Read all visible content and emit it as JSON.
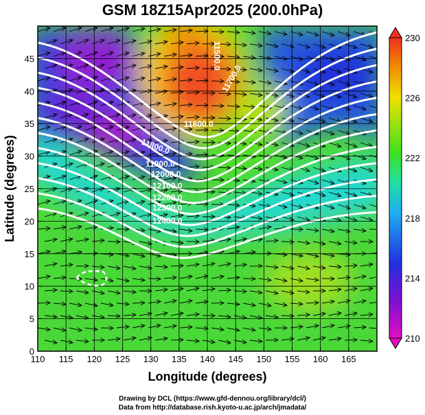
{
  "title": "GSM 18Z15Apr2025 (200.0hPa)",
  "xaxis": {
    "label": "Longitude (degrees)",
    "ticks": [
      "110",
      "115",
      "120",
      "125",
      "130",
      "135",
      "140",
      "145",
      "150",
      "155",
      "160",
      "165"
    ],
    "range": [
      110,
      170
    ]
  },
  "yaxis": {
    "label": "Latitude  (degrees)",
    "ticks": [
      "0",
      "5",
      "10",
      "15",
      "20",
      "25",
      "30",
      "35",
      "40",
      "45"
    ],
    "range": [
      0,
      50
    ]
  },
  "colorbar": {
    "ticks": [
      "230",
      "226",
      "222",
      "218",
      "214",
      "210"
    ],
    "range": [
      210,
      230
    ],
    "colors": [
      "#e010c0",
      "#8010d0",
      "#2030e0",
      "#20b0f0",
      "#20e0a0",
      "#40e020",
      "#a0e010",
      "#f0e000",
      "#f09000",
      "#f03020"
    ]
  },
  "contour_labels": [
    "11500.0",
    "11600.0",
    "11700.0",
    "11800.0",
    "11900.0",
    "12000.0",
    "12100.0",
    "12200.0",
    "12300.0",
    "12400.0"
  ],
  "credits": [
    "Drawing by DCL (https://www.gfd-dennou.org/library/dcl/)",
    "Data from http://database.rish.kyoto-u.ac.jp/arch/jmadata/"
  ]
}
